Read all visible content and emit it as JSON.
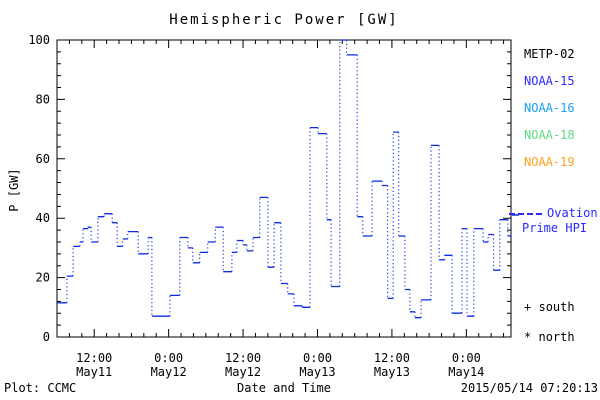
{
  "title": "Hemispheric Power [GW]",
  "footer": {
    "plot_credit": "Plot: CCMC",
    "timestamp": "2015/05/14 07:20:13"
  },
  "legend": {
    "satellites": [
      {
        "label": "METP-02",
        "color": "#000000"
      },
      {
        "label": "NOAA-15",
        "color": "#2a2aff"
      },
      {
        "label": "NOAA-16",
        "color": "#1ba1f2"
      },
      {
        "label": "NOAA-18",
        "color": "#5ddb84"
      },
      {
        "label": "NOAA-19",
        "color": "#ffa21f"
      }
    ],
    "line_entry": {
      "label_line1": "Ovation",
      "label_line2": "Prime HPI",
      "color": "#2a2aff"
    },
    "symbols": [
      {
        "glyph": "+",
        "label": "south"
      },
      {
        "glyph": "*",
        "label": "north"
      }
    ]
  },
  "chart_data": {
    "type": "line",
    "subtype": "step (solid horizontal segments, dotted vertical risers)",
    "title": "Hemispheric Power [GW]",
    "xlabel": "Date and Time",
    "ylabel": "P [GW]",
    "ylim": [
      0,
      100
    ],
    "y_major_ticks": [
      0,
      20,
      40,
      60,
      80,
      100
    ],
    "y_minor_step": 4,
    "x_unit": "hours since 2015-05-11 06:00 UT",
    "xlim": [
      0,
      73.2
    ],
    "x_minor_step_hours": 2,
    "x_major_ticks": [
      {
        "h": 6,
        "time": "12:00",
        "date": "May11"
      },
      {
        "h": 18,
        "time": "0:00",
        "date": "May12"
      },
      {
        "h": 30,
        "time": "12:00",
        "date": "May12"
      },
      {
        "h": 42,
        "time": "0:00",
        "date": "May13"
      },
      {
        "h": 54,
        "time": "12:00",
        "date": "May13"
      },
      {
        "h": 66,
        "time": "0:00",
        "date": "May14"
      }
    ],
    "grid": false,
    "legend_position": "right, outside plot",
    "frame": "full box with inward ticks on all four sides",
    "axis_color": "#000000",
    "series": [
      {
        "name": "Ovation Prime HPI",
        "color": "#0c2ce4",
        "points_format": "[hours, GW] step start points; value holds until next point",
        "points": [
          [
            0,
            11.5
          ],
          [
            1.6,
            20.5
          ],
          [
            2.6,
            30.5
          ],
          [
            3.7,
            32
          ],
          [
            4.2,
            36.5
          ],
          [
            5.0,
            37
          ],
          [
            5.5,
            32
          ],
          [
            6.6,
            40.5
          ],
          [
            7.6,
            41.5
          ],
          [
            8.9,
            38.5
          ],
          [
            9.7,
            30.5
          ],
          [
            10.6,
            33
          ],
          [
            11.4,
            35.5
          ],
          [
            13.1,
            28
          ],
          [
            14.7,
            33.5
          ],
          [
            15.3,
            7
          ],
          [
            18.2,
            14
          ],
          [
            19.8,
            33.5
          ],
          [
            21.1,
            30
          ],
          [
            21.9,
            25
          ],
          [
            23.0,
            28.5
          ],
          [
            24.3,
            32
          ],
          [
            25.5,
            37
          ],
          [
            26.8,
            22
          ],
          [
            28.2,
            28.5
          ],
          [
            29.0,
            32.5
          ],
          [
            30.0,
            31
          ],
          [
            30.6,
            29
          ],
          [
            31.6,
            33.5
          ],
          [
            32.7,
            47
          ],
          [
            34.0,
            23.5
          ],
          [
            35.0,
            38.5
          ],
          [
            36.1,
            18
          ],
          [
            37.2,
            14.5
          ],
          [
            38.2,
            10.5
          ],
          [
            39.5,
            10
          ],
          [
            40.8,
            70.5
          ],
          [
            42.1,
            68.5
          ],
          [
            43.5,
            39.5
          ],
          [
            44.2,
            17
          ],
          [
            45.6,
            100
          ],
          [
            46.7,
            95
          ],
          [
            48.4,
            40.5
          ],
          [
            49.3,
            34
          ],
          [
            50.8,
            52.5
          ],
          [
            52.4,
            51
          ],
          [
            53.3,
            13
          ],
          [
            54.2,
            69
          ],
          [
            55.1,
            34
          ],
          [
            56.1,
            16
          ],
          [
            56.9,
            8.5
          ],
          [
            57.7,
            6.5
          ],
          [
            58.7,
            12.5
          ],
          [
            60.3,
            64.5
          ],
          [
            61.6,
            26
          ],
          [
            62.5,
            27.5
          ],
          [
            63.7,
            8
          ],
          [
            65.3,
            36.5
          ],
          [
            66.1,
            7
          ],
          [
            67.2,
            36.5
          ],
          [
            68.7,
            32
          ],
          [
            69.5,
            34.5
          ],
          [
            70.4,
            22.5
          ],
          [
            71.4,
            39.5
          ],
          [
            72.7,
            34
          ]
        ]
      }
    ]
  }
}
